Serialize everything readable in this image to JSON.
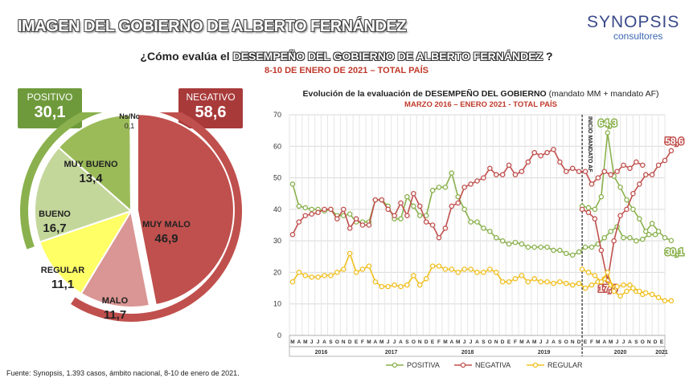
{
  "header": {
    "title": "IMAGEN DEL GOBIERNO DE ALBERTO FERNÁNDEZ",
    "logo_name": "SYNOPSIS",
    "logo_sub": "consultores",
    "question_pre": "¿Cómo evalúa el ",
    "question_highlight": "DESEMPEÑO DEL GOBIERNO DE ALBERTO FERNÁNDEZ",
    "question_post": " ?",
    "date": "8-10 DE ENERO DE 2021 – TOTAL PAÍS"
  },
  "summary": {
    "positivo_label": "POSITIVO",
    "positivo_value": "30,1",
    "negativo_label": "NEGATIVO",
    "negativo_value": "58,6",
    "nsnc_label": "Ns/Nc",
    "nsnc_value": "0,1"
  },
  "colors": {
    "positiva": "#8ab14d",
    "negativa": "#c0504d",
    "regular": "#f0c020",
    "positivo_box": "#6f9a3c",
    "negativo_box": "#a83a3a"
  },
  "footer": "Fuente: Synopsis, 1.393 casos, ámbito nacional, 8-10 de enero de 2021.",
  "chart_data": [
    {
      "type": "pie",
      "categories": [
        "MUY MALO",
        "MALO",
        "REGULAR",
        "BUENO",
        "MUY BUENO",
        "Ns/Nc"
      ],
      "values": [
        46.9,
        11.7,
        11.1,
        16.7,
        13.4,
        0.1
      ],
      "labels": [
        "46,9",
        "11,7",
        "11,1",
        "16,7",
        "13,4",
        "0,1"
      ],
      "colors": [
        "#c0504d",
        "#da9694",
        "#ffff66",
        "#c4d79b",
        "#9bbb59",
        "#ffffff"
      ],
      "groups": [
        {
          "name": "NEGATIVO",
          "value": 58.6,
          "color": "#c0504d"
        },
        {
          "name": "POSITIVO",
          "value": 30.1,
          "color": "#8ab14d"
        }
      ]
    },
    {
      "type": "line",
      "title": "Evolución de la evaluación de DESEMPEÑO DEL GOBIERNO",
      "title_note": " (mandato MM + mandato AF)",
      "subtitle": "MARZO 2016 – ENERO 2021 - TOTAL PAÍS",
      "ylim": [
        0,
        70
      ],
      "yticks": [
        0,
        10,
        20,
        30,
        40,
        50,
        60,
        70
      ],
      "month_labels": [
        "M",
        "A",
        "M",
        "J",
        "J",
        "A",
        "S",
        "O",
        "N",
        "D",
        "E",
        "F",
        "M",
        "A",
        "M",
        "J",
        "J",
        "A",
        "S",
        "O",
        "N",
        "D",
        "E",
        "F",
        "M",
        "A",
        "M",
        "J",
        "J",
        "A",
        "S",
        "O",
        "N",
        "D",
        "E",
        "F",
        "M",
        "A",
        "M",
        "J",
        "J",
        "A",
        "S",
        "O",
        "N",
        "D",
        "E",
        "F",
        "M",
        "A",
        "M",
        "J",
        "J",
        "A",
        "S",
        "O",
        "N",
        "D",
        "E"
      ],
      "year_labels": [
        {
          "label": "2016",
          "at": 4.5
        },
        {
          "label": "2017",
          "at": 15.5
        },
        {
          "label": "2018",
          "at": 27.5
        },
        {
          "label": "2019",
          "at": 39.5
        },
        {
          "label": "2020",
          "at": 51.5
        },
        {
          "label": "2021",
          "at": 58
        }
      ],
      "annotation": "INICIO MANDATO AF",
      "annotation_at": 45.5,
      "series": [
        {
          "name": "POSITIVA",
          "color": "#8ab14d",
          "segments": [
            {
              "x_start": 0,
              "values": [
                48,
                41,
                40.5,
                40,
                40,
                39.5,
                40,
                38,
                38,
                38.5,
                36,
                36,
                36,
                43,
                43,
                41,
                37,
                37,
                44,
                41,
                38,
                38,
                46,
                47,
                47,
                51.5,
                44,
                40,
                36,
                36,
                34,
                33,
                31,
                30,
                29,
                29.5,
                29,
                28,
                28,
                28,
                28,
                27,
                27,
                26,
                25.5,
                26.5,
                28,
                28,
                29,
                31,
                33,
                34.5,
                31,
                31,
                30,
                30.5,
                32,
                32
              ]
            },
            {
              "x_start": 45.5,
              "values": [
                41,
                40.5,
                40,
                44,
                64.3,
                50.5,
                47,
                43,
                40,
                37,
                33,
                35.5,
                33,
                31,
                30.1
              ]
            }
          ],
          "end_labels": [
            {
              "at_index": 4,
              "text": "64,3"
            },
            {
              "at_index": 14,
              "text": "30,1"
            }
          ]
        },
        {
          "name": "NEGATIVA",
          "color": "#c0504d",
          "segments": [
            {
              "x_start": 0,
              "values": [
                32,
                36,
                38,
                38.5,
                39,
                40,
                40,
                37,
                40,
                34,
                37,
                35,
                35,
                43,
                43,
                40,
                38,
                42,
                38,
                45,
                41,
                36,
                35,
                31,
                34,
                41,
                42,
                47,
                48,
                49,
                50,
                53,
                51,
                51,
                54,
                51,
                52,
                55,
                58,
                57,
                58,
                59,
                55,
                52,
                53,
                52,
                52,
                48,
                50,
                52,
                51,
                52,
                54,
                53,
                55,
                54
              ]
            },
            {
              "x_start": 45.5,
              "values": [
                40,
                39,
                37,
                27,
                17.4,
                30,
                38,
                40,
                45,
                48,
                51,
                51,
                54,
                55.5,
                58.6
              ]
            }
          ],
          "end_labels": [
            {
              "at_index": 4,
              "text": "17,4"
            },
            {
              "at_index": 14,
              "text": "58,6"
            }
          ]
        },
        {
          "name": "REGULAR",
          "color": "#f0c020",
          "segments": [
            {
              "x_start": 0,
              "values": [
                17,
                20,
                19,
                18.5,
                18.5,
                19,
                19,
                20,
                21,
                26,
                20,
                21,
                22,
                17,
                15.5,
                15.5,
                16,
                15.5,
                16,
                19,
                16,
                18,
                22,
                22,
                21,
                21,
                20,
                21,
                21,
                20,
                20,
                21,
                20,
                17,
                17,
                18,
                19,
                17,
                18,
                17,
                17,
                16.5,
                17,
                16.5,
                16,
                16.5,
                15,
                16,
                17,
                18,
                16,
                15.5,
                16,
                16,
                14,
                13
              ]
            },
            {
              "x_start": 45.5,
              "values": [
                21,
                20,
                19,
                17,
                20,
                14,
                12.5,
                14,
                15,
                14,
                13.5,
                13,
                12,
                11,
                11
              ]
            }
          ],
          "end_labels": []
        }
      ],
      "legend": [
        "POSITIVA",
        "NEGATIVA",
        "REGULAR"
      ]
    }
  ]
}
